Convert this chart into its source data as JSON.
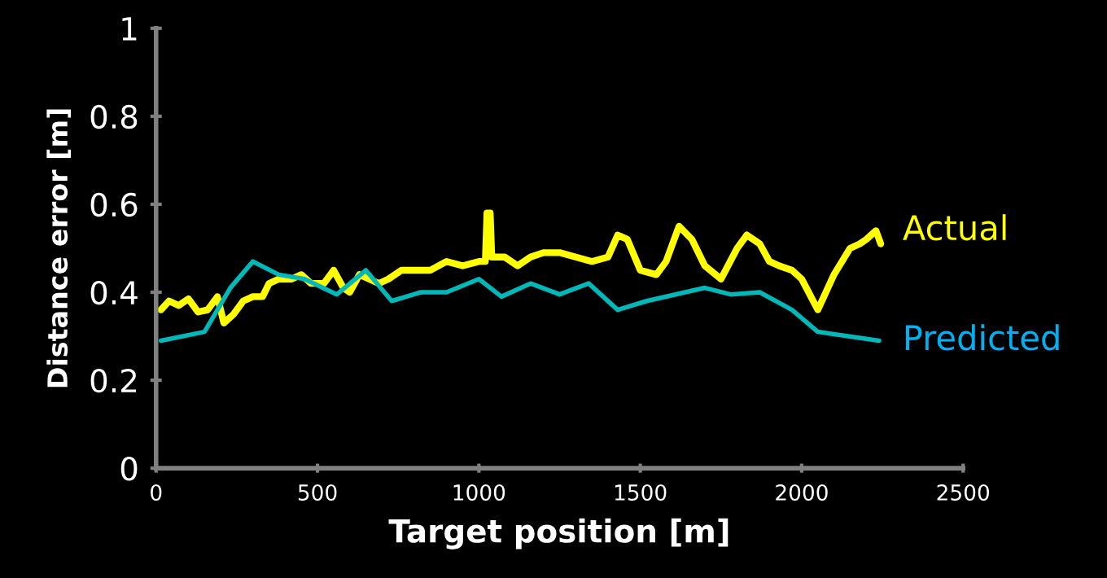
{
  "chart_data": {
    "type": "line",
    "xlabel": "Target position [m]",
    "ylabel": "Distance error [m]",
    "xlim": [
      0,
      2500
    ],
    "xticks": [
      0,
      500,
      1000,
      1500,
      2000,
      2500
    ],
    "ylim": [
      0,
      1
    ],
    "yticks": [
      0,
      0.2,
      0.4,
      0.6,
      0.8,
      1
    ],
    "grid": false,
    "legend": false,
    "marker": "none",
    "line_style": "solid",
    "series": [
      {
        "name": "Actual",
        "color": "#ffff00",
        "x": [
          15,
          40,
          70,
          100,
          130,
          160,
          190,
          210,
          240,
          270,
          300,
          330,
          350,
          380,
          420,
          450,
          480,
          520,
          550,
          580,
          600,
          630,
          660,
          690,
          720,
          760,
          800,
          850,
          900,
          950,
          1000,
          1020,
          1025,
          1035,
          1040,
          1080,
          1120,
          1160,
          1200,
          1250,
          1300,
          1350,
          1400,
          1430,
          1460,
          1500,
          1550,
          1580,
          1620,
          1660,
          1700,
          1750,
          1800,
          1830,
          1870,
          1900,
          1930,
          1970,
          2000,
          2050,
          2100,
          2150,
          2180,
          2200,
          2230,
          2245
        ],
        "values": [
          0.36,
          0.38,
          0.37,
          0.385,
          0.355,
          0.36,
          0.39,
          0.33,
          0.35,
          0.38,
          0.39,
          0.39,
          0.42,
          0.43,
          0.43,
          0.44,
          0.42,
          0.42,
          0.45,
          0.41,
          0.4,
          0.44,
          0.43,
          0.42,
          0.43,
          0.45,
          0.45,
          0.45,
          0.47,
          0.46,
          0.47,
          0.47,
          0.58,
          0.58,
          0.48,
          0.48,
          0.46,
          0.48,
          0.49,
          0.49,
          0.48,
          0.47,
          0.48,
          0.53,
          0.52,
          0.45,
          0.44,
          0.47,
          0.55,
          0.52,
          0.46,
          0.43,
          0.5,
          0.53,
          0.51,
          0.47,
          0.46,
          0.45,
          0.43,
          0.36,
          0.44,
          0.5,
          0.51,
          0.52,
          0.54,
          0.51
        ]
      },
      {
        "name": "Predicted",
        "color": "#00b8b8",
        "x": [
          15,
          150,
          230,
          300,
          380,
          460,
          560,
          650,
          730,
          820,
          900,
          1000,
          1070,
          1160,
          1250,
          1340,
          1430,
          1520,
          1700,
          1780,
          1870,
          1970,
          2050,
          2240
        ],
        "values": [
          0.29,
          0.31,
          0.41,
          0.47,
          0.44,
          0.43,
          0.395,
          0.45,
          0.38,
          0.4,
          0.4,
          0.43,
          0.39,
          0.42,
          0.395,
          0.42,
          0.36,
          0.38,
          0.41,
          0.395,
          0.4,
          0.36,
          0.31,
          0.29
        ]
      }
    ]
  }
}
